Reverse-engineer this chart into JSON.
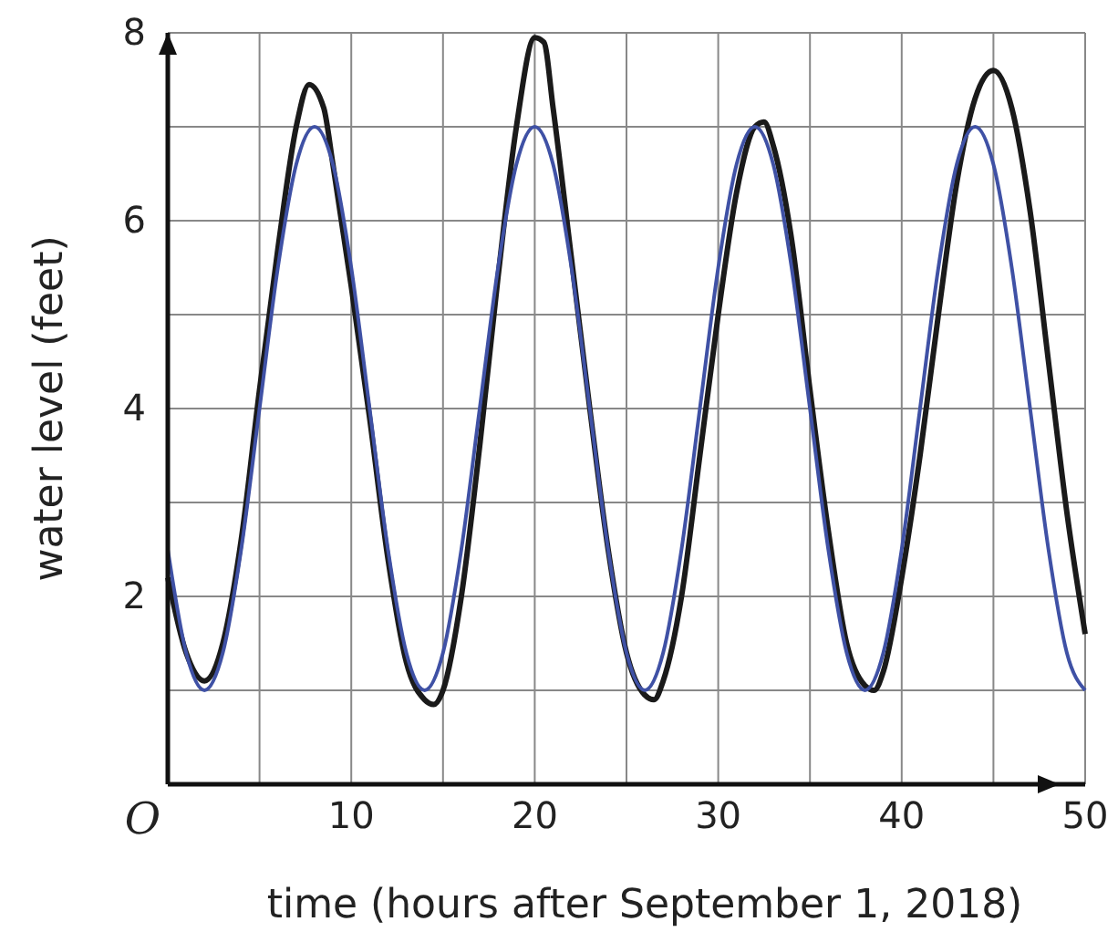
{
  "chart_data": {
    "type": "line",
    "xlabel": "time (hours after September 1, 2018)",
    "ylabel": "water level (feet)",
    "xlim": [
      0,
      50
    ],
    "ylim": [
      0,
      8
    ],
    "xticks": [
      {
        "value": 0,
        "label": "O"
      },
      {
        "value": 5,
        "label": null
      },
      10,
      {
        "value": 15,
        "label": null
      },
      20,
      {
        "value": 25,
        "label": null
      },
      30,
      {
        "value": 35,
        "label": null
      },
      40,
      {
        "value": 45,
        "label": null
      },
      50
    ],
    "yticks": [
      {
        "value": 1,
        "label": null
      },
      2,
      {
        "value": 3,
        "label": null
      },
      4,
      {
        "value": 5,
        "label": null
      },
      6,
      {
        "value": 7,
        "label": null
      },
      8
    ],
    "grid": true,
    "marker": "none",
    "line_style": "solid",
    "series": [
      {
        "color": "#1a1a1a",
        "x": [
          0,
          1,
          2,
          3,
          4,
          5,
          6,
          7,
          7.7,
          8.5,
          9,
          10,
          11,
          12,
          13,
          14,
          14.5,
          15,
          16,
          17,
          18,
          19,
          20,
          20.5,
          21,
          22,
          23,
          24,
          25,
          26,
          26.5,
          27,
          28,
          29,
          30,
          31,
          32,
          32.5,
          33,
          34,
          35,
          36,
          37,
          38,
          38.5,
          39,
          40,
          41,
          42,
          43,
          44,
          45,
          46,
          47,
          48,
          49,
          50
        ],
        "values": [
          2.2,
          1.4,
          1.1,
          1.5,
          2.6,
          4.2,
          5.7,
          7.0,
          7.45,
          7.2,
          6.6,
          5.3,
          3.9,
          2.4,
          1.3,
          0.9,
          0.85,
          1.0,
          2.0,
          3.6,
          5.4,
          7.0,
          7.95,
          7.9,
          7.2,
          5.6,
          4.0,
          2.5,
          1.4,
          0.95,
          0.9,
          1.1,
          2.0,
          3.5,
          5.0,
          6.3,
          7.0,
          7.05,
          6.8,
          5.8,
          4.2,
          2.7,
          1.5,
          1.05,
          1.0,
          1.2,
          2.2,
          3.5,
          5.0,
          6.4,
          7.3,
          7.6,
          7.2,
          6.1,
          4.5,
          2.9,
          1.6
        ]
      },
      {
        "color": "#3f51a5",
        "x": [
          0,
          1,
          2,
          3,
          4,
          5,
          6,
          7,
          8,
          9,
          10,
          11,
          12,
          13,
          14,
          15,
          16,
          17,
          18,
          19,
          20,
          21,
          22,
          23,
          24,
          25,
          26,
          27,
          28,
          29,
          30,
          31,
          32,
          33,
          34,
          35,
          36,
          37,
          38,
          39,
          40,
          41,
          42,
          43,
          44,
          45,
          46,
          47,
          48,
          49,
          50
        ],
        "values": [
          2.5,
          1.4,
          1,
          1.4,
          2.5,
          4,
          5.5,
          6.6,
          7,
          6.6,
          5.5,
          4,
          2.5,
          1.4,
          1,
          1.4,
          2.5,
          4,
          5.5,
          6.6,
          7,
          6.6,
          5.5,
          4,
          2.5,
          1.4,
          1,
          1.4,
          2.5,
          4,
          5.5,
          6.6,
          7,
          6.6,
          5.5,
          4,
          2.5,
          1.4,
          1,
          1.4,
          2.5,
          4,
          5.5,
          6.6,
          7,
          6.6,
          5.5,
          4,
          2.5,
          1.4,
          1
        ]
      }
    ]
  }
}
